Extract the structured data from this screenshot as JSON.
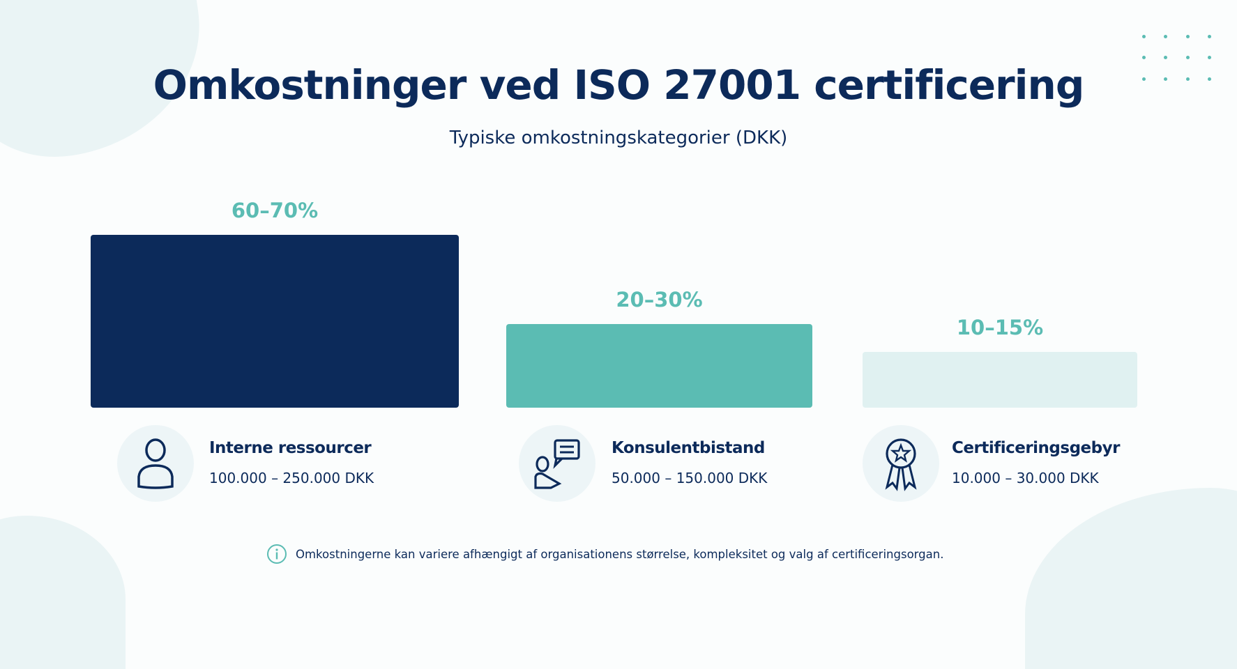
{
  "title": "Omkostninger ved ISO 27001 certificering",
  "subtitle": "Typiske omkostningskategorier (DKK)",
  "colors": {
    "navy": "#0c2a5a",
    "teal": "#5bbcb3",
    "light_teal": "#e0f1f1",
    "icon_bg": "#edf5f7"
  },
  "chart_data": {
    "type": "bar",
    "title": "Omkostninger ved ISO 27001 certificering",
    "subtitle": "Typiske omkostningskategorier (DKK)",
    "unit": "%",
    "grid": false,
    "categories": [
      "Interne ressourcer",
      "Konsulentbistand",
      "Certificeringsgebyr"
    ],
    "ranges": [
      [
        60,
        70
      ],
      [
        20,
        30
      ],
      [
        10,
        15
      ]
    ],
    "data_labels": [
      "60–70%",
      "20–30%",
      "10–15%"
    ],
    "cost_ranges": [
      "100.000 – 250.000 DKK",
      "50.000 – 150.000 DKK",
      "10.000 – 30.000 DKK"
    ],
    "bar_colors": [
      "#0c2a5a",
      "#5bbcb3",
      "#e0f1f1"
    ],
    "icons": [
      "person-icon",
      "consultant-chat-icon",
      "award-ribbon-icon"
    ]
  },
  "footer": {
    "icon": "info-icon",
    "text": "Omkostningerne kan variere afhængigt af organisationens størrelse, kompleksitet og valg af certificeringsorgan."
  }
}
